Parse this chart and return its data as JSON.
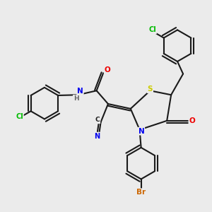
{
  "bg_color": "#ebebeb",
  "bond_color": "#1a1a1a",
  "atom_colors": {
    "N": "#0000ee",
    "O": "#ee0000",
    "S": "#cccc00",
    "Cl": "#00bb00",
    "Br": "#cc6600",
    "C": "#1a1a1a",
    "H": "#666666"
  },
  "lw": 1.5
}
